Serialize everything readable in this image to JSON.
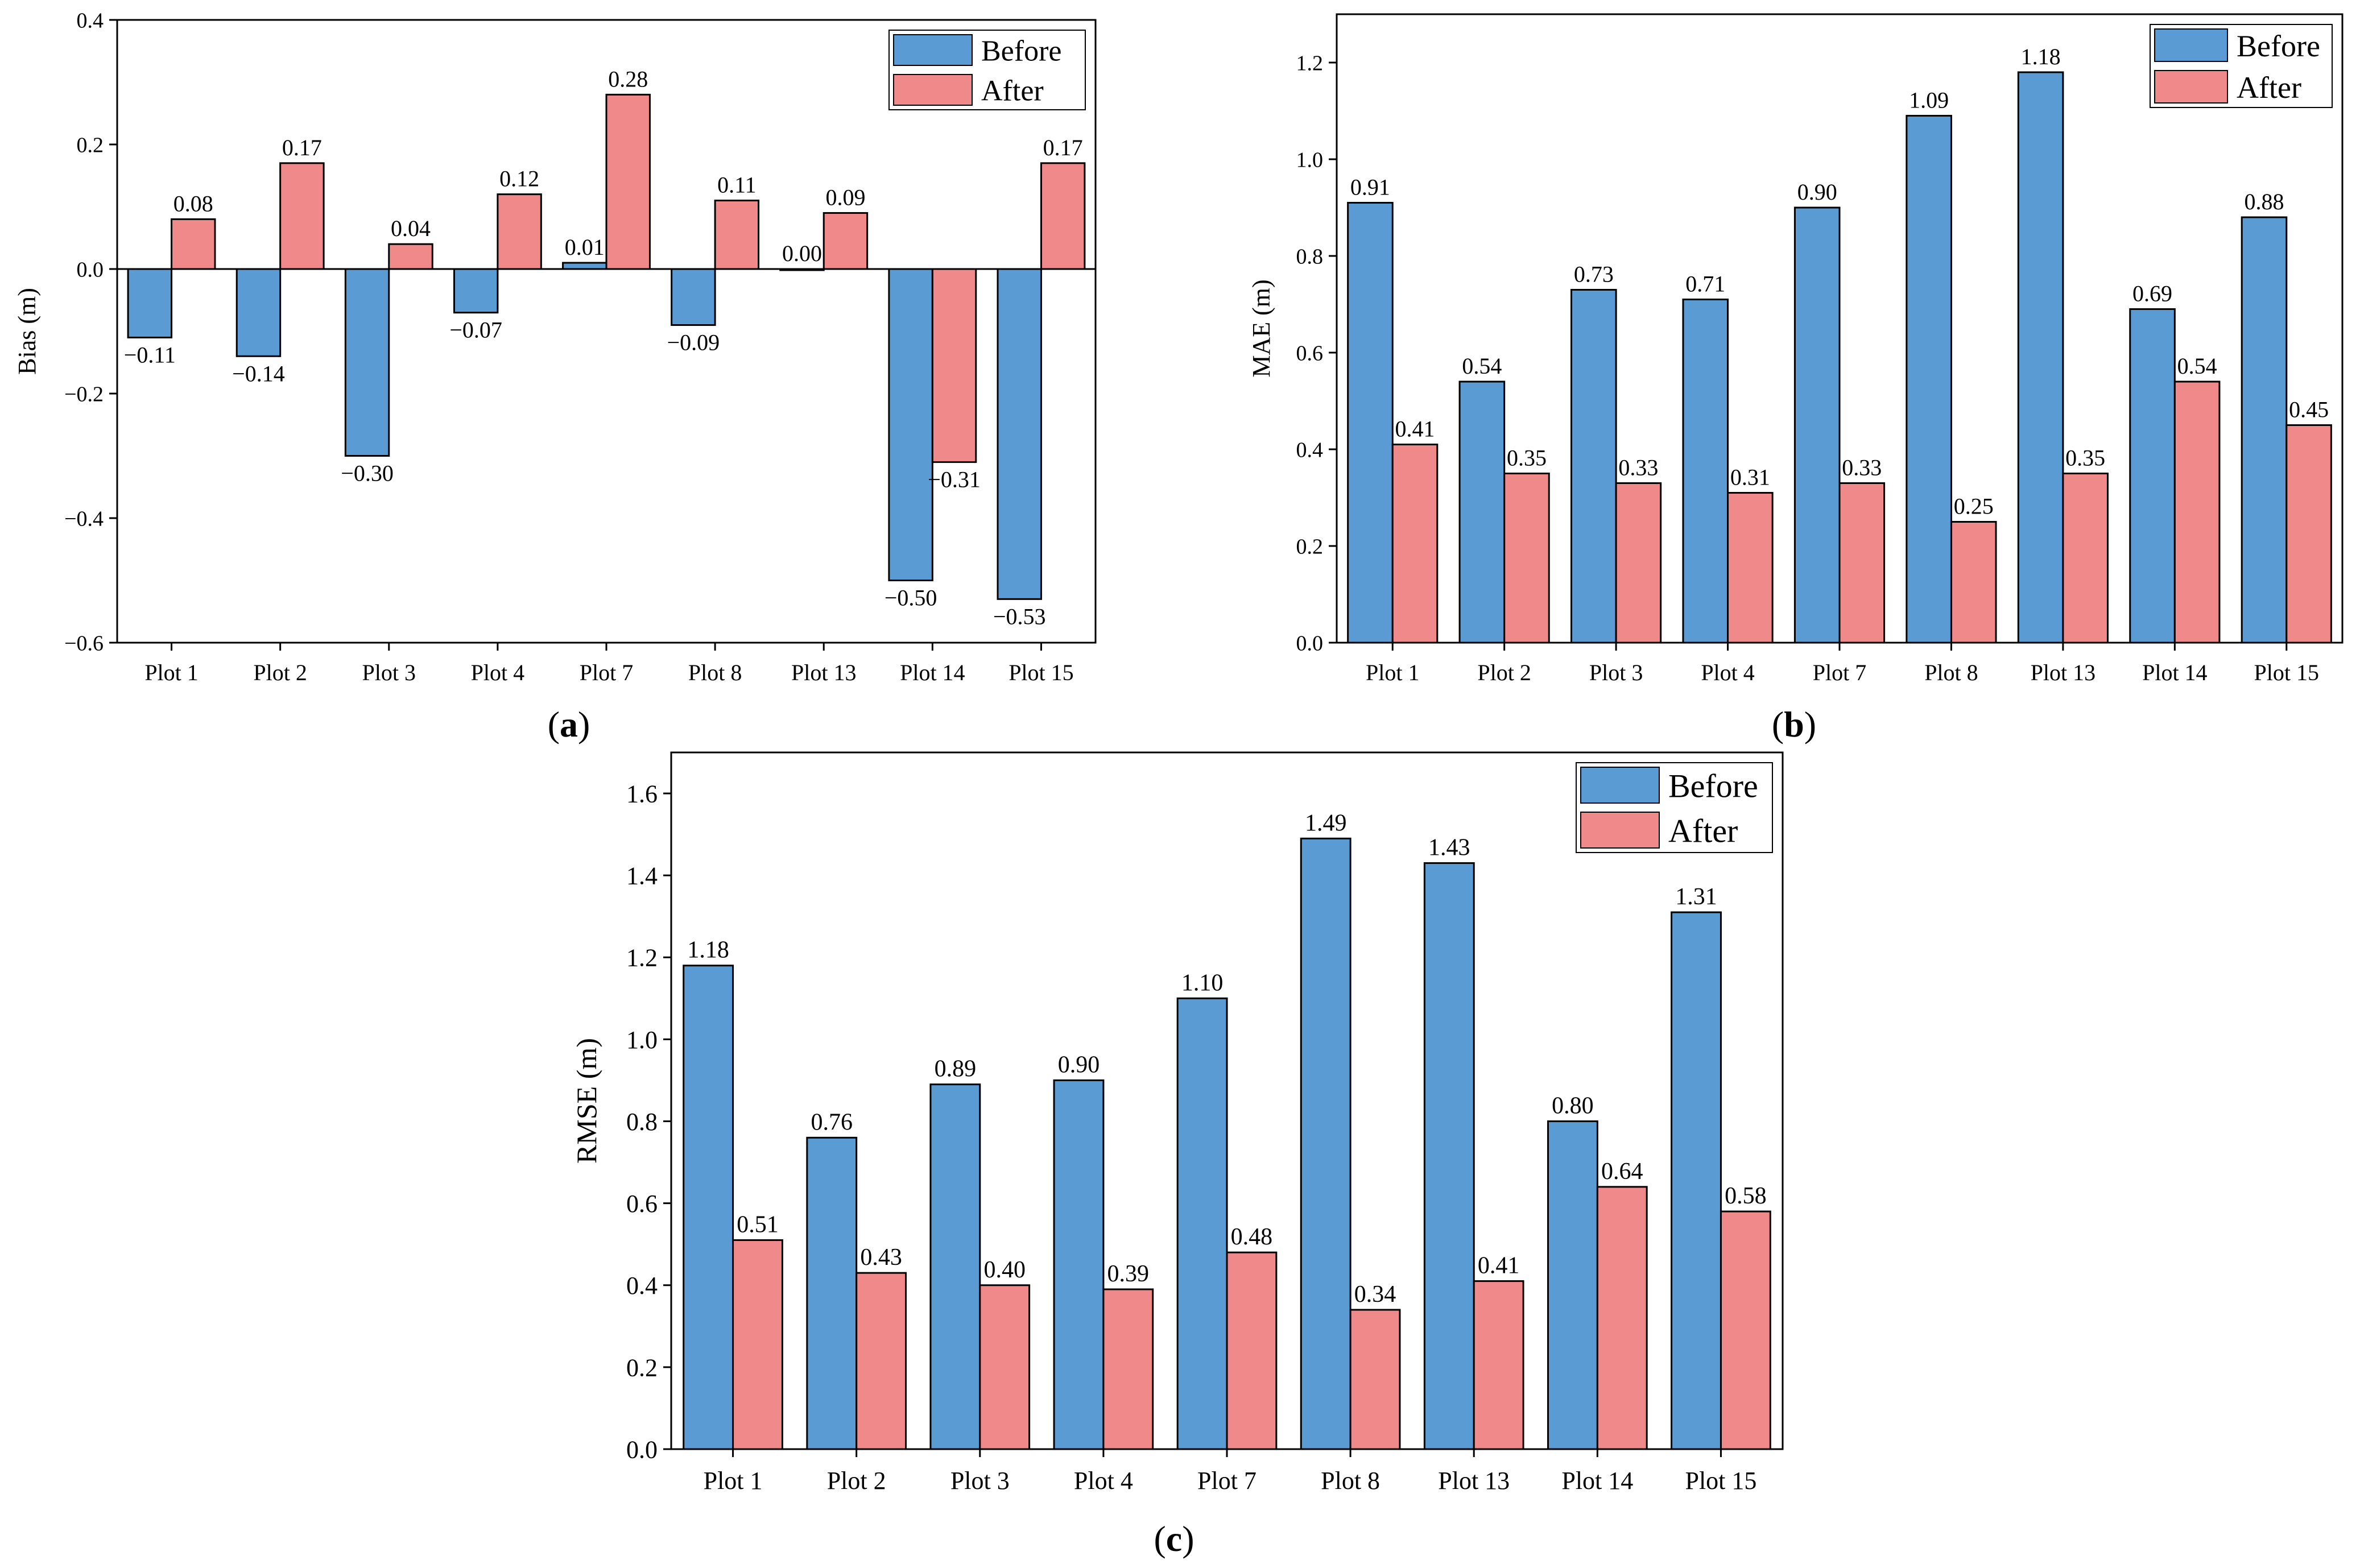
{
  "colors": {
    "before": "#5b9bd3",
    "after": "#f08a8a",
    "axis": "#000000",
    "background": "#ffffff"
  },
  "panel_labels": [
    "a",
    "b",
    "c"
  ],
  "chart_data": [
    {
      "id": "a",
      "type": "bar",
      "title": "",
      "xlabel": "",
      "ylabel": "Bias (m)",
      "ylim": [
        -0.6,
        0.4
      ],
      "yticks": [
        -0.6,
        -0.4,
        -0.2,
        0.0,
        0.2,
        0.4
      ],
      "ytick_labels": [
        "−0.6",
        "−0.4",
        "−0.2",
        "0.0",
        "0.2",
        "0.4"
      ],
      "categories": [
        "Plot 1",
        "Plot 2",
        "Plot 3",
        "Plot 4",
        "Plot 7",
        "Plot 8",
        "Plot 13",
        "Plot 14",
        "Plot 15"
      ],
      "legend": {
        "placement": "top-right",
        "entries": [
          "Before",
          "After"
        ]
      },
      "series": [
        {
          "name": "Before",
          "values": [
            -0.11,
            -0.14,
            -0.3,
            -0.07,
            0.01,
            -0.09,
            0.0,
            -0.5,
            -0.53
          ],
          "labels": [
            "−0.11",
            "−0.14",
            "−0.30",
            "−0.07",
            "0.01",
            "−0.09",
            "0.00",
            "−0.50",
            "−0.53"
          ]
        },
        {
          "name": "After",
          "values": [
            0.08,
            0.17,
            0.04,
            0.12,
            0.28,
            0.11,
            0.09,
            -0.31,
            0.17
          ],
          "labels": [
            "0.08",
            "0.17",
            "0.04",
            "0.12",
            "0.28",
            "0.11",
            "0.09",
            "−0.31",
            "0.17"
          ]
        }
      ]
    },
    {
      "id": "b",
      "type": "bar",
      "title": "",
      "xlabel": "",
      "ylabel": "MAE (m)",
      "ylim": [
        0,
        1.3
      ],
      "yticks": [
        0.0,
        0.2,
        0.4,
        0.6,
        0.8,
        1.0,
        1.2
      ],
      "ytick_labels": [
        "0.0",
        "0.2",
        "0.4",
        "0.6",
        "0.8",
        "1.0",
        "1.2"
      ],
      "categories": [
        "Plot 1",
        "Plot 2",
        "Plot 3",
        "Plot 4",
        "Plot 7",
        "Plot 8",
        "Plot 13",
        "Plot 14",
        "Plot 15"
      ],
      "legend": {
        "placement": "top-right",
        "entries": [
          "Before",
          "After"
        ]
      },
      "series": [
        {
          "name": "Before",
          "values": [
            0.91,
            0.54,
            0.73,
            0.71,
            0.9,
            1.09,
            1.18,
            0.69,
            0.88
          ],
          "labels": [
            "0.91",
            "0.54",
            "0.73",
            "0.71",
            "0.90",
            "1.09",
            "1.18",
            "0.69",
            "0.88"
          ]
        },
        {
          "name": "After",
          "values": [
            0.41,
            0.35,
            0.33,
            0.31,
            0.33,
            0.25,
            0.35,
            0.54,
            0.45
          ],
          "labels": [
            "0.41",
            "0.35",
            "0.33",
            "0.31",
            "0.33",
            "0.25",
            "0.35",
            "0.54",
            "0.45"
          ]
        }
      ]
    },
    {
      "id": "c",
      "type": "bar",
      "title": "",
      "xlabel": "",
      "ylabel": "RMSE (m)",
      "ylim": [
        0,
        1.7
      ],
      "yticks": [
        0.0,
        0.2,
        0.4,
        0.6,
        0.8,
        1.0,
        1.2,
        1.4,
        1.6
      ],
      "ytick_labels": [
        "0.0",
        "0.2",
        "0.4",
        "0.6",
        "0.8",
        "1.0",
        "1.2",
        "1.4",
        "1.6"
      ],
      "categories": [
        "Plot 1",
        "Plot 2",
        "Plot 3",
        "Plot 4",
        "Plot 7",
        "Plot 8",
        "Plot 13",
        "Plot 14",
        "Plot 15"
      ],
      "legend": {
        "placement": "top-right",
        "entries": [
          "Before",
          "After"
        ]
      },
      "series": [
        {
          "name": "Before",
          "values": [
            1.18,
            0.76,
            0.89,
            0.9,
            1.1,
            1.49,
            1.43,
            0.8,
            1.31
          ],
          "labels": [
            "1.18",
            "0.76",
            "0.89",
            "0.90",
            "1.10",
            "1.49",
            "1.43",
            "0.80",
            "1.31"
          ]
        },
        {
          "name": "After",
          "values": [
            0.51,
            0.43,
            0.4,
            0.39,
            0.48,
            0.34,
            0.41,
            0.64,
            0.58
          ],
          "labels": [
            "0.51",
            "0.43",
            "0.40",
            "0.39",
            "0.48",
            "0.34",
            "0.41",
            "0.64",
            "0.58"
          ]
        }
      ]
    }
  ]
}
